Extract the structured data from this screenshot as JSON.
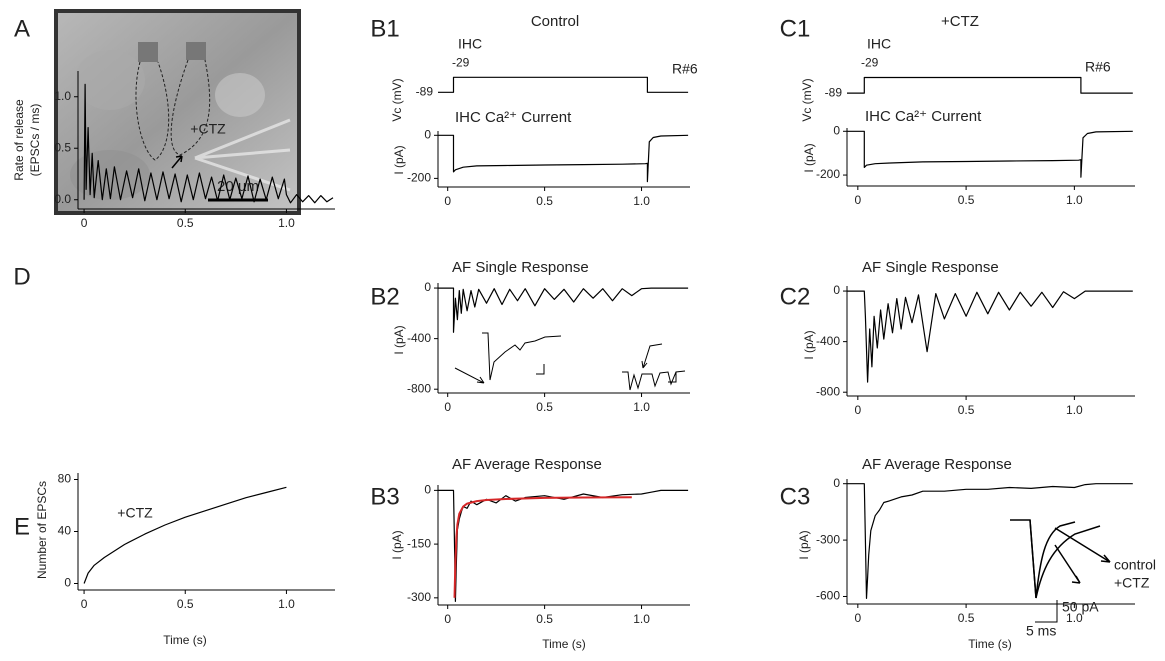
{
  "chart_data": [
    {
      "type": "image",
      "panel": "A",
      "scale_label": "20 µm"
    },
    {
      "type": "line",
      "panel": "B1",
      "title": "Control",
      "annotations": [
        "IHC",
        "R#6"
      ],
      "ylabel": "Vc (mV)",
      "show_axes": false,
      "xlim": [
        -0.05,
        1.25
      ],
      "ylim": [
        -100,
        0
      ],
      "yticks": [
        -89,
        -29
      ],
      "series": [
        {
          "color": "#000000",
          "x": [
            -0.05,
            0.03,
            0.03,
            1.03,
            1.03,
            1.24
          ],
          "values": [
            -89,
            -89,
            -29,
            -29,
            -89,
            -89
          ]
        }
      ]
    },
    {
      "type": "line",
      "subtitle": "IHC Ca²⁺ Current",
      "ylabel": "I (pA)",
      "xlim": [
        -0.05,
        1.25
      ],
      "ylim": [
        -240,
        20
      ],
      "xticks": [
        0,
        0.5,
        {
          "value": 1,
          "label": "1.0"
        }
      ],
      "yticks": [
        -200,
        0
      ],
      "series": [
        {
          "color": "#000000",
          "x": [
            -0.05,
            0.03,
            0.03,
            0.04,
            0.08,
            0.15,
            0.3,
            0.5,
            0.7,
            0.9,
            1.02,
            1.03,
            1.03,
            1.04,
            1.06,
            1.1,
            1.24
          ],
          "values": [
            0,
            0,
            -170,
            -160,
            -148,
            -142,
            -140,
            -138,
            -136,
            -134,
            -132,
            -130,
            -215,
            -30,
            -10,
            -3,
            0
          ]
        }
      ]
    },
    {
      "type": "line",
      "panel": "C1",
      "title": "+CTZ",
      "annotations": [
        "IHC",
        "R#6"
      ],
      "ylabel": "Vc (mV)",
      "show_axes": false,
      "xlim": [
        -0.05,
        1.28
      ],
      "ylim": [
        -100,
        0
      ],
      "yticks": [
        -89,
        -29
      ],
      "series": [
        {
          "color": "#000000",
          "x": [
            -0.05,
            0.03,
            0.03,
            1.03,
            1.03,
            1.27
          ],
          "values": [
            -89,
            -89,
            -29,
            -29,
            -89,
            -89
          ]
        }
      ]
    },
    {
      "type": "line",
      "subtitle": "IHC Ca²⁺ Current",
      "ylabel": "I (pA)",
      "xlim": [
        -0.05,
        1.28
      ],
      "ylim": [
        -250,
        15
      ],
      "xticks": [
        0,
        0.5,
        {
          "value": 1,
          "label": "1.0"
        }
      ],
      "yticks": [
        -200,
        0
      ],
      "series": [
        {
          "color": "#000000",
          "x": [
            -0.05,
            0.03,
            0.03,
            0.04,
            0.08,
            0.15,
            0.3,
            0.5,
            0.7,
            0.9,
            1.02,
            1.03,
            1.03,
            1.04,
            1.06,
            1.1,
            1.27
          ],
          "values": [
            0,
            0,
            -165,
            -155,
            -148,
            -145,
            -140,
            -138,
            -136,
            -134,
            -132,
            -130,
            -210,
            -30,
            -10,
            -3,
            0
          ]
        }
      ]
    },
    {
      "type": "line",
      "panel": "D",
      "annotations": [
        "+CTZ"
      ],
      "ylabel": [
        "Rate of release",
        "(EPSCs / ms)"
      ],
      "xlim": [
        -0.03,
        1.24
      ],
      "ylim": [
        -0.09,
        1.25
      ],
      "xticks": [
        0,
        0.5,
        {
          "value": 1,
          "label": "1.0"
        }
      ],
      "yticks": [
        {
          "value": 0,
          "label": "0.0"
        },
        0.5,
        {
          "value": 1,
          "label": "1.0"
        }
      ],
      "series": [
        {
          "color": "#000000",
          "x": [
            0,
            0.005,
            0.01,
            0.02,
            0.03,
            0.04,
            0.05,
            0.07,
            0.09,
            0.11,
            0.13,
            0.15,
            0.18,
            0.21,
            0.24,
            0.27,
            0.3,
            0.33,
            0.36,
            0.39,
            0.42,
            0.45,
            0.48,
            0.51,
            0.54,
            0.57,
            0.6,
            0.63,
            0.66,
            0.69,
            0.72,
            0.75,
            0.78,
            0.81,
            0.84,
            0.87,
            0.9,
            0.93,
            0.96,
            0.99,
            1.0,
            1.02,
            1.05,
            1.08,
            1.11,
            1.14,
            1.17,
            1.2,
            1.23
          ],
          "values": [
            0,
            1.12,
            0.1,
            0.7,
            0.05,
            0.45,
            0.02,
            0.38,
            0.0,
            0.3,
            0.01,
            0.32,
            0.0,
            0.28,
            0.02,
            0.3,
            -0.01,
            0.26,
            0.0,
            0.27,
            0.01,
            0.25,
            -0.02,
            0.24,
            0.0,
            0.26,
            0.01,
            0.22,
            -0.01,
            0.24,
            0.0,
            0.21,
            0.01,
            0.23,
            -0.02,
            0.2,
            0.0,
            0.22,
            0.01,
            0.2,
            0.05,
            -0.03,
            0.05,
            -0.02,
            0.04,
            -0.03,
            0.04,
            -0.02,
            0.02
          ]
        }
      ]
    },
    {
      "type": "line",
      "panel": "E",
      "annotations": [
        "+CTZ"
      ],
      "ylabel": "Number of EPSCs",
      "xlabel": "Time (s)",
      "xlim": [
        -0.03,
        1.24
      ],
      "ylim": [
        -5,
        85
      ],
      "xticks": [
        0,
        0.5,
        {
          "value": 1,
          "label": "1.0"
        }
      ],
      "yticks": [
        0,
        40,
        80
      ],
      "series": [
        {
          "color": "#000000",
          "x": [
            0,
            0.02,
            0.05,
            0.1,
            0.2,
            0.3,
            0.4,
            0.5,
            0.6,
            0.7,
            0.8,
            0.9,
            1.0
          ],
          "values": [
            0,
            8,
            14,
            20,
            30,
            38,
            45,
            51,
            56,
            61,
            66,
            70,
            74
          ]
        }
      ]
    },
    {
      "type": "line",
      "panel": "B2",
      "title": "AF Single Response",
      "ylabel": "I (pA)",
      "xlim": [
        -0.05,
        1.25
      ],
      "ylim": [
        -830,
        40
      ],
      "xticks": [
        0,
        0.5,
        {
          "value": 1,
          "label": "1.0"
        }
      ],
      "yticks": [
        -800,
        -400,
        0
      ],
      "series": [
        {
          "color": "#000000",
          "x": [
            -0.05,
            0.03,
            0.03,
            0.04,
            0.05,
            0.06,
            0.07,
            0.08,
            0.1,
            0.12,
            0.14,
            0.16,
            0.2,
            0.24,
            0.28,
            0.32,
            0.36,
            0.4,
            0.45,
            0.5,
            0.55,
            0.6,
            0.65,
            0.7,
            0.75,
            0.8,
            0.85,
            0.9,
            0.95,
            1.0,
            1.05,
            1.1,
            1.24
          ],
          "values": [
            0,
            0,
            -350,
            -80,
            -250,
            -20,
            -200,
            -10,
            -180,
            -20,
            -150,
            -10,
            -120,
            -5,
            -130,
            -10,
            -100,
            -5,
            -140,
            -5,
            -90,
            -10,
            -110,
            -5,
            -80,
            -5,
            -100,
            -5,
            -60,
            -5,
            0,
            0,
            0
          ]
        }
      ]
    },
    {
      "type": "line",
      "panel": "C2",
      "title": "AF Single Response",
      "ylabel": "I (pA)",
      "xlim": [
        -0.05,
        1.28
      ],
      "ylim": [
        -830,
        40
      ],
      "xticks": [
        0,
        0.5,
        {
          "value": 1,
          "label": "1.0"
        }
      ],
      "yticks": [
        -800,
        -400,
        0
      ],
      "series": [
        {
          "color": "#000000",
          "x": [
            -0.05,
            0.03,
            0.035,
            0.045,
            0.055,
            0.065,
            0.075,
            0.09,
            0.105,
            0.12,
            0.14,
            0.16,
            0.18,
            0.2,
            0.22,
            0.25,
            0.28,
            0.32,
            0.36,
            0.4,
            0.45,
            0.5,
            0.55,
            0.6,
            0.65,
            0.7,
            0.75,
            0.8,
            0.85,
            0.9,
            0.95,
            1.0,
            1.05,
            1.1,
            1.27
          ],
          "values": [
            0,
            0,
            -200,
            -720,
            -300,
            -600,
            -200,
            -450,
            -150,
            -380,
            -100,
            -330,
            -60,
            -300,
            -50,
            -250,
            -30,
            -480,
            -20,
            -220,
            -20,
            -200,
            -10,
            -180,
            -10,
            -150,
            -10,
            -120,
            -10,
            -130,
            -5,
            -60,
            0,
            0,
            0
          ]
        }
      ]
    },
    {
      "type": "line",
      "panel": "B3",
      "title": "AF Average Response",
      "ylabel": "I (pA)",
      "xlabel": "Time (s)",
      "xlim": [
        -0.05,
        1.25
      ],
      "ylim": [
        -320,
        15
      ],
      "xticks": [
        0,
        0.5,
        {
          "value": 1,
          "label": "1.0"
        }
      ],
      "yticks": [
        -300,
        -150,
        0
      ],
      "series": [
        {
          "color": "#000000",
          "x": [
            -0.05,
            0.03,
            0.035,
            0.04,
            0.045,
            0.05,
            0.06,
            0.07,
            0.08,
            0.1,
            0.12,
            0.15,
            0.2,
            0.25,
            0.3,
            0.35,
            0.4,
            0.5,
            0.6,
            0.7,
            0.8,
            0.9,
            1.0,
            1.05,
            1.1,
            1.24
          ],
          "values": [
            0,
            0,
            -150,
            -310,
            -200,
            -110,
            -80,
            -60,
            -45,
            -50,
            -30,
            -40,
            -25,
            -35,
            -15,
            -30,
            -20,
            -15,
            -25,
            -10,
            -20,
            -12,
            -10,
            -5,
            0,
            0
          ]
        },
        {
          "color": "#d62728",
          "x": [
            0.035,
            0.04,
            0.045,
            0.05,
            0.06,
            0.08,
            0.1,
            0.15,
            0.2,
            0.3,
            0.5,
            0.7,
            0.95
          ],
          "values": [
            -300,
            -200,
            -130,
            -95,
            -65,
            -45,
            -37,
            -30,
            -27,
            -24,
            -21,
            -20,
            -19
          ]
        }
      ]
    },
    {
      "type": "line",
      "panel": "C3",
      "title": "AF Average Response",
      "ylabel": "I (pA)",
      "xlabel": "Time (s)",
      "annotations": [
        "control",
        "+CTZ",
        "50 pA",
        "5 ms"
      ],
      "xlim": [
        -0.05,
        1.28
      ],
      "ylim": [
        -640,
        25
      ],
      "xticks": [
        0,
        0.5,
        {
          "value": 1,
          "label": "1.0"
        }
      ],
      "yticks": [
        -600,
        -300,
        0
      ],
      "series": [
        {
          "color": "#000000",
          "x": [
            -0.05,
            0.03,
            0.035,
            0.04,
            0.045,
            0.05,
            0.06,
            0.08,
            0.1,
            0.12,
            0.15,
            0.2,
            0.25,
            0.3,
            0.4,
            0.5,
            0.6,
            0.7,
            0.8,
            0.9,
            1.0,
            1.05,
            1.1,
            1.27
          ],
          "values": [
            0,
            0,
            -300,
            -610,
            -500,
            -380,
            -250,
            -170,
            -140,
            -100,
            -90,
            -70,
            -60,
            -40,
            -40,
            -30,
            -30,
            -20,
            -25,
            -15,
            -20,
            -5,
            0,
            0
          ]
        }
      ]
    }
  ]
}
